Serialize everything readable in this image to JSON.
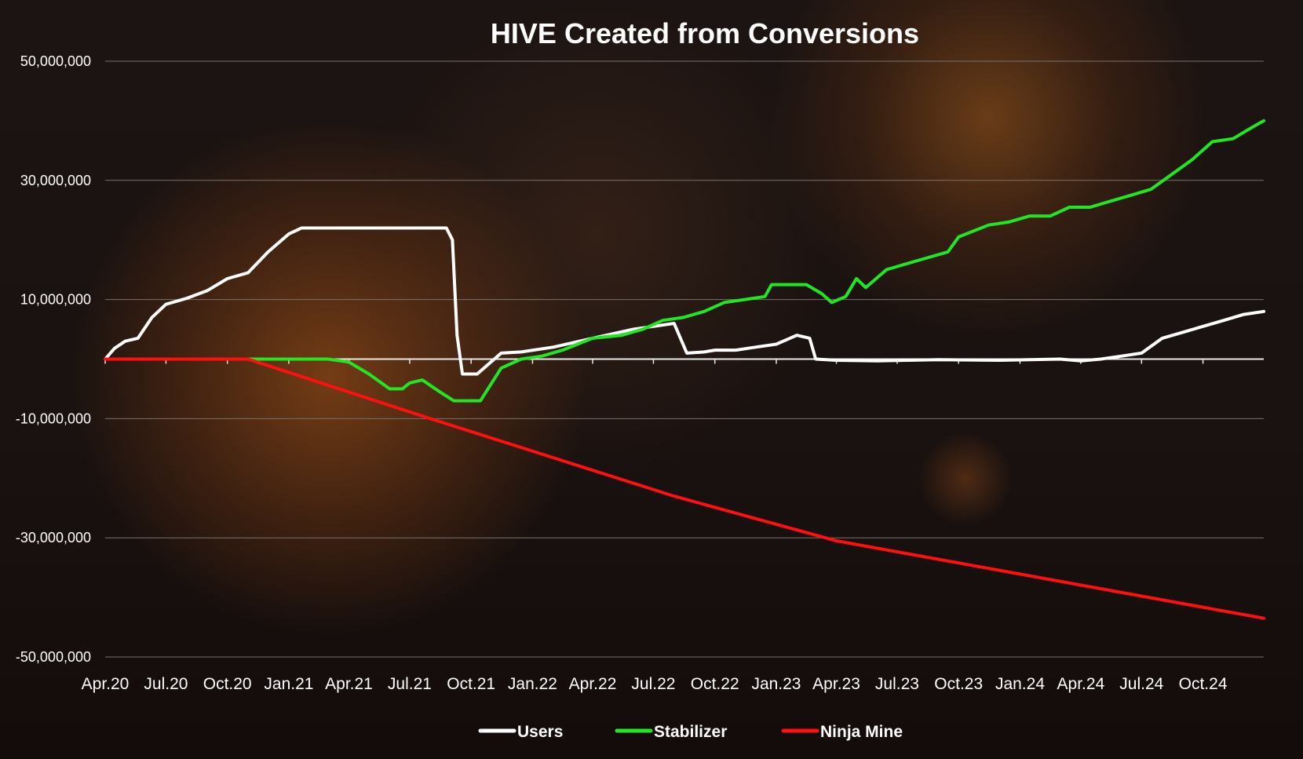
{
  "chart_data": {
    "type": "line",
    "title": "HIVE Created from Conversions",
    "xlabel": "",
    "ylabel": "",
    "x_tick_labels": [
      "Apr.20",
      "Jul.20",
      "Oct.20",
      "Jan.21",
      "Apr.21",
      "Jul.21",
      "Oct.21",
      "Jan.22",
      "Apr.22",
      "Jul.22",
      "Oct.22",
      "Jan.23",
      "Apr.23",
      "Jul.23",
      "Oct.23",
      "Jan.24",
      "Apr.24",
      "Jul.24",
      "Oct.24"
    ],
    "y_ticks": [
      50000000,
      30000000,
      10000000,
      -10000000,
      -30000000,
      -50000000
    ],
    "y_tick_labels": [
      "50,000,000",
      "30,000,000",
      "10,000,000",
      "-10,000,000",
      "-30,000,000",
      "-50,000,000"
    ],
    "ylim": [
      -50000000,
      50000000
    ],
    "xlim": [
      "2020-04-01",
      "2024-12-31"
    ],
    "grid": true,
    "legend_position": "bottom",
    "series": [
      {
        "name": "Users",
        "color": "#ffffff",
        "x": [
          "2020-04-01",
          "2020-04-15",
          "2020-05-01",
          "2020-05-20",
          "2020-06-10",
          "2020-07-01",
          "2020-08-01",
          "2020-09-01",
          "2020-10-01",
          "2020-11-01",
          "2020-12-01",
          "2021-01-01",
          "2021-01-20",
          "2021-03-01",
          "2021-05-01",
          "2021-08-01",
          "2021-08-25",
          "2021-09-03",
          "2021-09-10",
          "2021-09-18",
          "2021-10-10",
          "2021-11-15",
          "2021-12-15",
          "2022-02-01",
          "2022-04-01",
          "2022-06-01",
          "2022-07-01",
          "2022-08-01",
          "2022-08-20",
          "2022-09-15",
          "2022-10-01",
          "2022-11-01",
          "2022-12-01",
          "2023-01-01",
          "2023-02-01",
          "2023-02-20",
          "2023-03-01",
          "2023-04-01",
          "2023-06-01",
          "2023-09-01",
          "2023-12-01",
          "2024-03-01",
          "2024-04-01",
          "2024-05-01",
          "2024-06-01",
          "2024-07-01",
          "2024-08-01",
          "2024-09-01",
          "2024-10-01",
          "2024-11-01",
          "2024-12-01",
          "2024-12-31"
        ],
        "values": [
          0,
          1800000,
          3000000,
          3500000,
          7000000,
          9200000,
          10200000,
          11500000,
          13500000,
          14500000,
          18000000,
          21000000,
          22000000,
          22000000,
          22000000,
          22000000,
          22000000,
          20000000,
          4000000,
          -2500000,
          -2500000,
          1000000,
          1200000,
          2000000,
          3500000,
          5000000,
          5500000,
          6000000,
          1000000,
          1200000,
          1500000,
          1500000,
          2000000,
          2500000,
          4000000,
          3500000,
          0,
          -200000,
          -300000,
          -100000,
          -200000,
          0,
          -300000,
          0,
          500000,
          1000000,
          3500000,
          4500000,
          5500000,
          6500000,
          7500000,
          8000000
        ]
      },
      {
        "name": "Stabilizer",
        "color": "#22e622",
        "x": [
          "2020-04-01",
          "2020-11-01",
          "2021-01-01",
          "2021-03-01",
          "2021-04-01",
          "2021-05-01",
          "2021-06-01",
          "2021-06-20",
          "2021-07-01",
          "2021-07-20",
          "2021-08-15",
          "2021-09-05",
          "2021-09-15",
          "2021-10-15",
          "2021-11-15",
          "2021-12-15",
          "2022-01-15",
          "2022-02-15",
          "2022-04-01",
          "2022-05-15",
          "2022-06-15",
          "2022-07-15",
          "2022-08-15",
          "2022-09-15",
          "2022-10-15",
          "2022-11-15",
          "2022-12-15",
          "2022-12-25",
          "2023-01-15",
          "2023-02-15",
          "2023-03-10",
          "2023-03-25",
          "2023-04-15",
          "2023-05-01",
          "2023-05-15",
          "2023-06-15",
          "2023-07-15",
          "2023-08-15",
          "2023-09-15",
          "2023-10-01",
          "2023-11-15",
          "2023-12-15",
          "2024-01-15",
          "2024-02-15",
          "2024-03-15",
          "2024-04-15",
          "2024-05-15",
          "2024-06-15",
          "2024-07-15",
          "2024-08-15",
          "2024-09-15",
          "2024-10-15",
          "2024-11-15",
          "2024-12-15",
          "2024-12-31"
        ],
        "values": [
          0,
          0,
          0,
          0,
          -500000,
          -2500000,
          -5000000,
          -5000000,
          -4000000,
          -3500000,
          -5500000,
          -7000000,
          -7000000,
          -7000000,
          -1500000,
          0,
          500000,
          1500000,
          3500000,
          4000000,
          5000000,
          6500000,
          7000000,
          8000000,
          9500000,
          10000000,
          10500000,
          12500000,
          12500000,
          12500000,
          11000000,
          9500000,
          10500000,
          13500000,
          12000000,
          15000000,
          16000000,
          17000000,
          18000000,
          20500000,
          22500000,
          23000000,
          24000000,
          24000000,
          25500000,
          25500000,
          26500000,
          27500000,
          28500000,
          31000000,
          33500000,
          36500000,
          37000000,
          39000000,
          40000000
        ]
      },
      {
        "name": "Ninja Mine",
        "color": "#ff1010",
        "x": [
          "2020-04-01",
          "2020-11-01",
          "2021-08-01",
          "2022-08-01",
          "2023-04-01",
          "2024-12-31"
        ],
        "values": [
          0,
          0,
          -10000000,
          -23000000,
          -30500000,
          -43500000
        ]
      }
    ]
  }
}
